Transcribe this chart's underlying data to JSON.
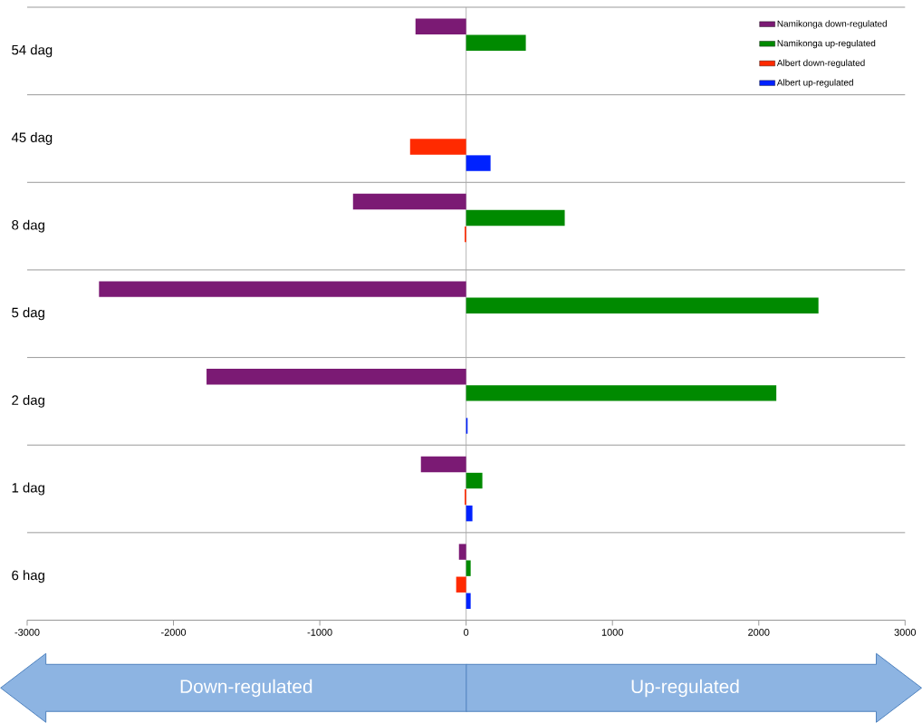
{
  "chart_data": {
    "type": "bar",
    "orientation": "horizontal",
    "categories": [
      "54 dag",
      "45 dag",
      "8 dag",
      "5 dag",
      "2 dag",
      "1 dag",
      "6 hag"
    ],
    "series": [
      {
        "name": "Namikonga  down-regulated",
        "color": "#7b1a74",
        "values": [
          -346,
          null,
          -773,
          -2509,
          -1774,
          -309,
          -49
        ]
      },
      {
        "name": "Namikonga  up-regulated",
        "color": "#008a00",
        "values": [
          408,
          null,
          674,
          2408,
          2120,
          111,
          31
        ]
      },
      {
        "name": "Albert down-regulated",
        "color": "#ff2a00",
        "values": [
          null,
          -383,
          -10,
          null,
          null,
          -10,
          -68
        ]
      },
      {
        "name": "Albert up-regulated",
        "color": "#0022ff",
        "values": [
          null,
          167,
          null,
          null,
          10,
          43,
          31
        ]
      }
    ],
    "xlim": [
      -3000,
      3000
    ],
    "xticks": [
      -3000,
      -2000,
      -1000,
      0,
      1000,
      2000,
      3000
    ],
    "grid": "y",
    "legend": "top right",
    "ref_lines": [
      {
        "axis": "x",
        "value": 0,
        "color": "#a6a6a6"
      }
    ],
    "annotations": [
      "Down-regulated",
      "Up-regulated"
    ]
  }
}
